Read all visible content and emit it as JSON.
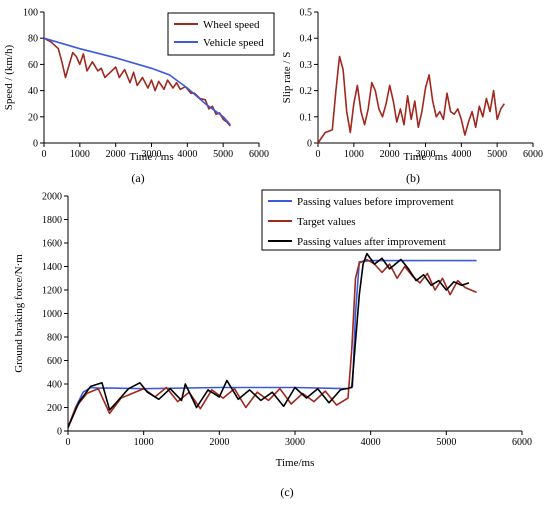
{
  "chart_data": [
    {
      "id": "a",
      "type": "line",
      "panel_label": "(a)",
      "xlabel": "Time / ms",
      "ylabel": "Speed / (km/h)",
      "xlim": [
        0,
        6000
      ],
      "ylim": [
        0,
        100
      ],
      "xticks": [
        0,
        1000,
        2000,
        3000,
        4000,
        5000,
        6000
      ],
      "yticks": [
        0,
        20,
        40,
        60,
        80,
        100
      ],
      "grid": false,
      "legend": "top-right",
      "colors": {
        "Wheel speed": "#a0281e",
        "Vehicle speed": "#3c5adc"
      },
      "series": [
        {
          "name": "Wheel speed",
          "x": [
            0,
            200,
            400,
            500,
            600,
            800,
            900,
            1000,
            1100,
            1200,
            1350,
            1500,
            1600,
            1700,
            1850,
            2000,
            2100,
            2250,
            2400,
            2500,
            2600,
            2750,
            2900,
            3000,
            3100,
            3200,
            3350,
            3450,
            3600,
            3700,
            3800,
            3950,
            4100,
            4200,
            4350,
            4500,
            4600,
            4700,
            4800,
            4900,
            5000,
            5100,
            5200
          ],
          "y": [
            80,
            77,
            72,
            62,
            50,
            69,
            66,
            60,
            68,
            55,
            62,
            55,
            57,
            50,
            54,
            58,
            50,
            56,
            46,
            54,
            44,
            50,
            42,
            48,
            40,
            47,
            41,
            48,
            42,
            46,
            41,
            43,
            38,
            38,
            34,
            33,
            26,
            28,
            22,
            23,
            18,
            16,
            13
          ]
        },
        {
          "name": "Vehicle speed",
          "x": [
            0,
            1000,
            2000,
            3000,
            3500,
            4000,
            4500,
            5000,
            5200
          ],
          "y": [
            80,
            72,
            65,
            57,
            52,
            42,
            30,
            20,
            14
          ]
        }
      ]
    },
    {
      "id": "b",
      "type": "line",
      "panel_label": "(b)",
      "xlabel": "Time / ms",
      "ylabel": "Slip rate / S",
      "xlim": [
        0,
        6000
      ],
      "ylim": [
        0,
        0.5
      ],
      "xticks": [
        0,
        1000,
        2000,
        3000,
        4000,
        5000,
        6000
      ],
      "yticks": [
        0,
        0.1,
        0.2,
        0.3,
        0.4,
        0.5
      ],
      "grid": false,
      "colors": {
        "slip": "#a0281e"
      },
      "series": [
        {
          "x": [
            0,
            200,
            400,
            500,
            600,
            700,
            800,
            900,
            1000,
            1100,
            1200,
            1300,
            1400,
            1500,
            1600,
            1700,
            1800,
            1900,
            2000,
            2100,
            2200,
            2300,
            2400,
            2500,
            2600,
            2700,
            2800,
            2900,
            3000,
            3100,
            3200,
            3300,
            3400,
            3500,
            3600,
            3700,
            3800,
            3900,
            4000,
            4100,
            4200,
            4300,
            4400,
            4500,
            4600,
            4700,
            4800,
            4900,
            5000,
            5100,
            5200
          ],
          "y": [
            0,
            0.04,
            0.05,
            0.2,
            0.33,
            0.28,
            0.12,
            0.04,
            0.15,
            0.22,
            0.12,
            0.07,
            0.13,
            0.23,
            0.2,
            0.13,
            0.1,
            0.15,
            0.22,
            0.16,
            0.08,
            0.13,
            0.07,
            0.18,
            0.09,
            0.16,
            0.06,
            0.12,
            0.21,
            0.26,
            0.16,
            0.1,
            0.12,
            0.09,
            0.19,
            0.12,
            0.11,
            0.13,
            0.09,
            0.03,
            0.08,
            0.12,
            0.06,
            0.14,
            0.1,
            0.17,
            0.12,
            0.2,
            0.09,
            0.13,
            0.15
          ]
        }
      ]
    },
    {
      "id": "c",
      "type": "line",
      "panel_label": "(c)",
      "xlabel": "Time/ms",
      "ylabel": "Ground braking force/N·m",
      "xlim": [
        0,
        6000
      ],
      "ylim": [
        0,
        2000
      ],
      "xticks": [
        0,
        1000,
        2000,
        3000,
        4000,
        5000,
        6000
      ],
      "yticks": [
        0,
        200,
        400,
        600,
        800,
        1000,
        1200,
        1400,
        1600,
        1800,
        2000
      ],
      "grid": false,
      "legend": "top-right",
      "colors": {
        "Passing values before improvement": "#3c5adc",
        "Target values": "#a0281e",
        "Passing values after improvement": "#000000"
      },
      "series": [
        {
          "name": "Passing values before improvement",
          "x": [
            0,
            100,
            200,
            300,
            400,
            600,
            1000,
            2000,
            3000,
            3700,
            3760,
            3800,
            3850,
            4000,
            4500,
            5000,
            5400
          ],
          "y": [
            30,
            200,
            330,
            370,
            365,
            365,
            360,
            370,
            370,
            360,
            380,
            1000,
            1440,
            1450,
            1450,
            1450,
            1450
          ]
        },
        {
          "name": "Target values",
          "x": [
            0,
            100,
            250,
            400,
            550,
            700,
            850,
            1000,
            1150,
            1300,
            1450,
            1600,
            1750,
            1900,
            2050,
            2200,
            2350,
            2500,
            2650,
            2800,
            2950,
            3100,
            3250,
            3400,
            3550,
            3700,
            3750,
            3800,
            3850,
            3950,
            4050,
            4150,
            4250,
            4350,
            4450,
            4550,
            4650,
            4750,
            4850,
            4950,
            5050,
            5150,
            5250,
            5400
          ],
          "y": [
            30,
            200,
            320,
            360,
            150,
            280,
            320,
            360,
            290,
            370,
            250,
            330,
            190,
            350,
            280,
            360,
            200,
            330,
            260,
            360,
            230,
            320,
            250,
            340,
            220,
            280,
            700,
            1300,
            1430,
            1460,
            1420,
            1350,
            1420,
            1300,
            1400,
            1320,
            1260,
            1340,
            1200,
            1300,
            1160,
            1280,
            1220,
            1180
          ]
        },
        {
          "name": "Passing values after improvement",
          "x": [
            0,
            150,
            300,
            450,
            550,
            650,
            800,
            950,
            1050,
            1200,
            1350,
            1500,
            1550,
            1700,
            1850,
            2000,
            2100,
            2250,
            2400,
            2550,
            2700,
            2850,
            3000,
            3150,
            3300,
            3450,
            3600,
            3750,
            3850,
            3900,
            3950,
            4050,
            4150,
            4250,
            4400,
            4500,
            4600,
            4700,
            4800,
            4900,
            5000,
            5100,
            5200,
            5300
          ],
          "y": [
            30,
            250,
            380,
            410,
            180,
            250,
            360,
            410,
            330,
            270,
            360,
            260,
            400,
            200,
            350,
            290,
            430,
            270,
            350,
            260,
            330,
            210,
            370,
            280,
            360,
            240,
            350,
            370,
            1160,
            1420,
            1510,
            1420,
            1470,
            1380,
            1460,
            1380,
            1280,
            1330,
            1240,
            1280,
            1200,
            1270,
            1240,
            1260
          ]
        }
      ]
    }
  ]
}
